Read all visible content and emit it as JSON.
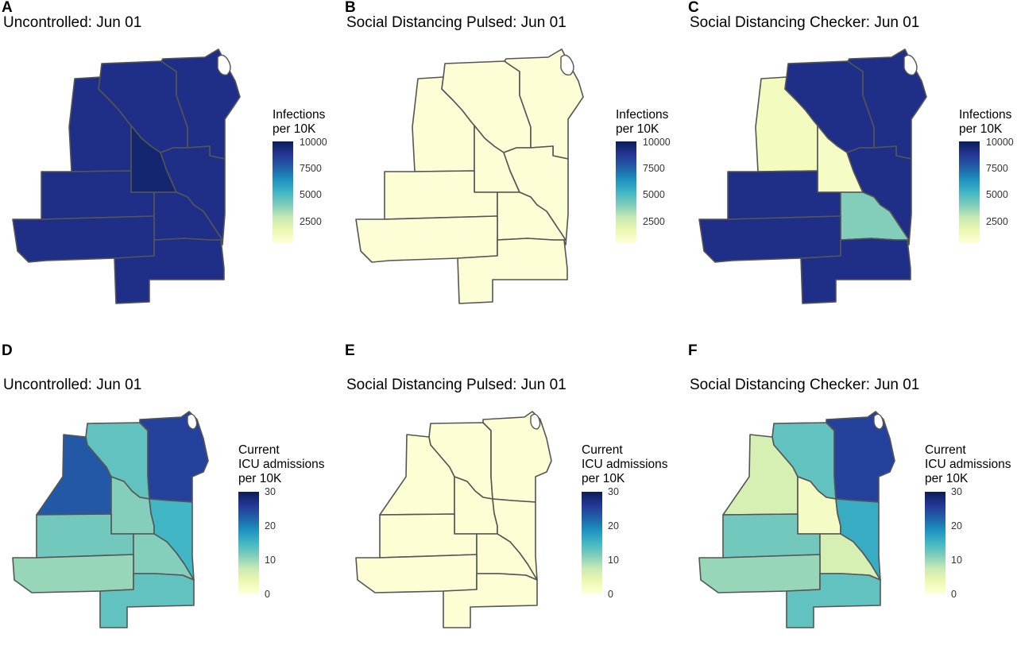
{
  "colors": {
    "scale": [
      "#ffffd9",
      "#edf8b1",
      "#c7e9b4",
      "#7fcdbb",
      "#41b6c4",
      "#1d91c0",
      "#225ea8",
      "#253494",
      "#081d58"
    ],
    "border": "#555555"
  },
  "legends": {
    "infections": {
      "title_lines": [
        "Infections",
        "per 10K"
      ],
      "ticks": [
        "10000",
        "7500",
        "5000",
        "2500"
      ]
    },
    "icu": {
      "title_lines": [
        "Current",
        "ICU admissions",
        "per 10K"
      ],
      "ticks": [
        "30",
        "20",
        "10",
        "0"
      ]
    }
  },
  "chart_data": [
    {
      "type": "choropleth",
      "panel": "A",
      "title": "Uncontrolled: Jun 01",
      "legend_title": "Infections per 10K",
      "scale_range": [
        0,
        10000
      ],
      "regions": [
        {
          "region": "northwest",
          "value": 9000
        },
        {
          "region": "north",
          "value": 9000
        },
        {
          "region": "northeast",
          "value": 9000
        },
        {
          "region": "center",
          "value": 9500
        },
        {
          "region": "east",
          "value": 9000
        },
        {
          "region": "west",
          "value": 9000
        },
        {
          "region": "mid-east",
          "value": 9000
        },
        {
          "region": "southwest",
          "value": 9000
        },
        {
          "region": "south",
          "value": 9000
        }
      ]
    },
    {
      "type": "choropleth",
      "panel": "B",
      "title": "Social Distancing Pulsed: Jun 01",
      "legend_title": "Infections per 10K",
      "scale_range": [
        0,
        10000
      ],
      "regions": [
        {
          "region": "northwest",
          "value": 100
        },
        {
          "region": "north",
          "value": 100
        },
        {
          "region": "northeast",
          "value": 100
        },
        {
          "region": "center",
          "value": 100
        },
        {
          "region": "east",
          "value": 100
        },
        {
          "region": "west",
          "value": 100
        },
        {
          "region": "mid-east",
          "value": 100
        },
        {
          "region": "southwest",
          "value": 100
        },
        {
          "region": "south",
          "value": 100
        }
      ]
    },
    {
      "type": "choropleth",
      "panel": "C",
      "title": "Social Distancing Checker: Jun 01",
      "legend_title": "Infections per 10K",
      "scale_range": [
        0,
        10000
      ],
      "regions": [
        {
          "region": "northwest",
          "value": 800
        },
        {
          "region": "north",
          "value": 9000
        },
        {
          "region": "northeast",
          "value": 9000
        },
        {
          "region": "center",
          "value": 600
        },
        {
          "region": "east",
          "value": 9000
        },
        {
          "region": "west",
          "value": 9000
        },
        {
          "region": "mid-east",
          "value": 3700
        },
        {
          "region": "southwest",
          "value": 9000
        },
        {
          "region": "south",
          "value": 9000
        }
      ]
    },
    {
      "type": "choropleth",
      "panel": "D",
      "title": "Uncontrolled: Jun 01",
      "legend_title": "Current ICU admissions per 10K",
      "scale_range": [
        0,
        30
      ],
      "regions": [
        {
          "region": "northwest",
          "value": 23
        },
        {
          "region": "north",
          "value": 13
        },
        {
          "region": "northeast",
          "value": 25
        },
        {
          "region": "center",
          "value": 11
        },
        {
          "region": "east",
          "value": 15
        },
        {
          "region": "west",
          "value": 12
        },
        {
          "region": "mid-east",
          "value": 11
        },
        {
          "region": "southwest",
          "value": 10
        },
        {
          "region": "south",
          "value": 13
        }
      ]
    },
    {
      "type": "choropleth",
      "panel": "E",
      "title": "Social Distancing Pulsed: Jun 01",
      "legend_title": "Current ICU admissions per 10K",
      "scale_range": [
        0,
        30
      ],
      "regions": [
        {
          "region": "northwest",
          "value": 0.5
        },
        {
          "region": "north",
          "value": 0.5
        },
        {
          "region": "northeast",
          "value": 0.5
        },
        {
          "region": "center",
          "value": 0.5
        },
        {
          "region": "east",
          "value": 0.5
        },
        {
          "region": "west",
          "value": 0.5
        },
        {
          "region": "mid-east",
          "value": 0.5
        },
        {
          "region": "southwest",
          "value": 0.5
        },
        {
          "region": "south",
          "value": 0.5
        }
      ]
    },
    {
      "type": "choropleth",
      "panel": "F",
      "title": "Social Distancing Checker: Jun 01",
      "legend_title": "Current ICU admissions per 10K",
      "scale_range": [
        0,
        30
      ],
      "regions": [
        {
          "region": "northwest",
          "value": 6
        },
        {
          "region": "north",
          "value": 13
        },
        {
          "region": "northeast",
          "value": 25
        },
        {
          "region": "center",
          "value": 2
        },
        {
          "region": "east",
          "value": 16
        },
        {
          "region": "west",
          "value": 12
        },
        {
          "region": "mid-east",
          "value": 6
        },
        {
          "region": "southwest",
          "value": 10
        },
        {
          "region": "south",
          "value": 13
        }
      ]
    }
  ]
}
